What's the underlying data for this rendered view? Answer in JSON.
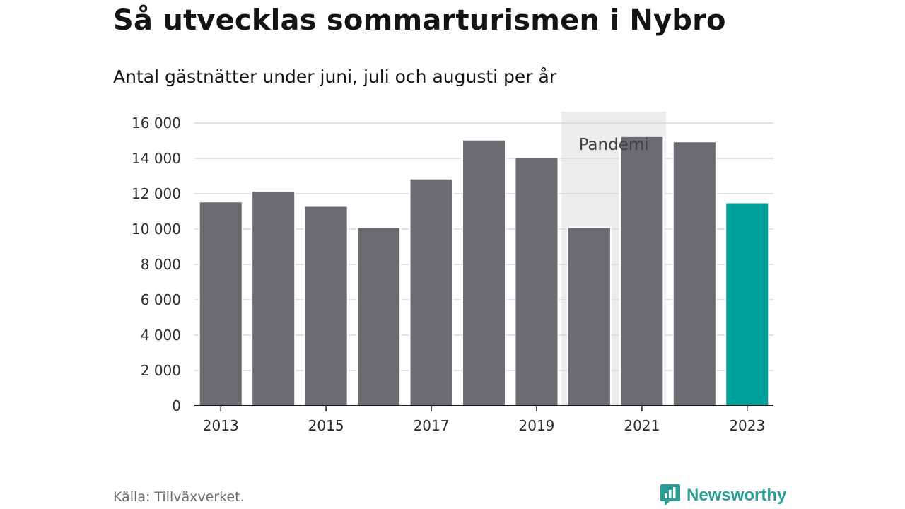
{
  "header": {
    "title": "Så utvecklas sommarturismen i Nybro",
    "subtitle": "Antal gästnätter under juni, juli och augusti per år"
  },
  "chart_data": {
    "type": "bar",
    "categories": [
      "2013",
      "2014",
      "2015",
      "2016",
      "2017",
      "2018",
      "2019",
      "2020",
      "2021",
      "2022",
      "2023"
    ],
    "values": [
      11550,
      12150,
      11300,
      10100,
      12850,
      15050,
      14050,
      10100,
      15250,
      14950,
      11500
    ],
    "x_tick_labels": [
      "2013",
      "2015",
      "2017",
      "2019",
      "2021",
      "2023"
    ],
    "y_ticks": [
      0,
      2000,
      4000,
      6000,
      8000,
      10000,
      12000,
      14000,
      16000
    ],
    "y_tick_labels": [
      "0",
      "2 000",
      "4 000",
      "6 000",
      "8 000",
      "10 000",
      "12 000",
      "14 000",
      "16 000"
    ],
    "ylim": [
      0,
      16000
    ],
    "grid": true,
    "highlight_category": "2023",
    "annotation": {
      "label": "Pandemi",
      "span": [
        "2020",
        "2021"
      ]
    },
    "colors": {
      "bar": "#6c6b71",
      "highlight": "#00a19a",
      "annotation_band": "#ececec",
      "grid": "#d9d9d9",
      "axis": "#1a1a1a"
    },
    "xlabel": "",
    "ylabel": ""
  },
  "footer": {
    "source": "Källa: Tillväxverket.",
    "brand": "Newsworthy",
    "brand_icon": "newsworthy-logo-icon",
    "brand_color": "#2a9d96"
  }
}
